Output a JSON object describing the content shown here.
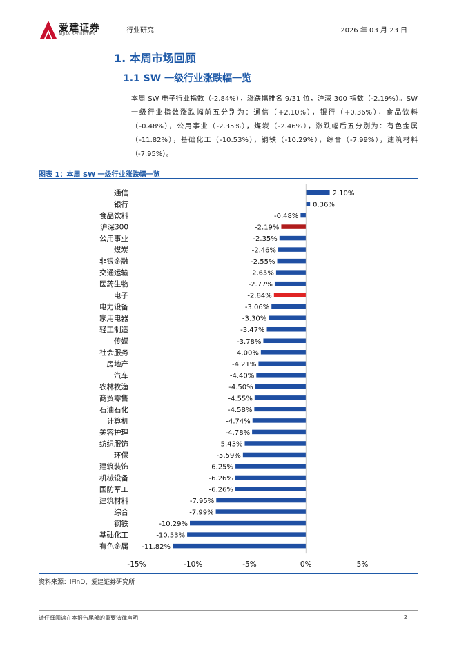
{
  "header": {
    "company_name": "爱建证券",
    "company_name_en": "AIJIAN SECURITIES",
    "section": "行业研究",
    "date": "2026 年 03 月 23 日"
  },
  "headings": {
    "h1": "1.  本周市场回顾",
    "h2": "1.1 SW 一级行业涨跌幅一览"
  },
  "body": {
    "paragraph": "本周 SW 电子行业指数（-2.84%），涨跌幅排名 9/31 位，沪深 300 指数（-2.19%）。SW 一级行业指数涨跌幅前五分别为：通信（+2.10%），银行（+0.36%），食品饮料（-0.48%），公用事业（-2.35%），煤炭（-2.46%），涨跌幅后五分别为：有色金属（-11.82%），基础化工（-10.53%），钢铁（-10.29%），综合（-7.99%），建筑材料（-7.95%）。"
  },
  "figure": {
    "title": "图表 1：本周 SW 一级行业涨跌幅一览",
    "source": "资料来源：iFinD，爱建证券研究所"
  },
  "chart_data": {
    "type": "bar",
    "orientation": "horizontal",
    "categories": [
      "通信",
      "银行",
      "食品饮料",
      "沪深300",
      "公用事业",
      "煤炭",
      "非银金融",
      "交通运输",
      "医药生物",
      "电子",
      "电力设备",
      "家用电器",
      "轻工制造",
      "传媒",
      "社会服务",
      "房地产",
      "汽车",
      "农林牧渔",
      "商贸零售",
      "石油石化",
      "计算机",
      "美容护理",
      "纺织服饰",
      "环保",
      "建筑装饰",
      "机械设备",
      "国防军工",
      "建筑材料",
      "综合",
      "钢铁",
      "基础化工",
      "有色金属"
    ],
    "values": [
      2.1,
      0.36,
      -0.48,
      -2.19,
      -2.35,
      -2.46,
      -2.55,
      -2.65,
      -2.77,
      -2.84,
      -3.06,
      -3.3,
      -3.47,
      -3.78,
      -4.0,
      -4.21,
      -4.4,
      -4.5,
      -4.55,
      -4.58,
      -4.74,
      -4.78,
      -5.43,
      -5.59,
      -6.25,
      -6.26,
      -6.26,
      -7.95,
      -7.99,
      -10.29,
      -10.53,
      -11.82
    ],
    "value_labels": [
      "2.10%",
      "0.36%",
      "-0.48%",
      "-2.19%",
      "-2.35%",
      "-2.46%",
      "-2.55%",
      "-2.65%",
      "-2.77%",
      "-2.84%",
      "-3.06%",
      "-3.30%",
      "-3.47%",
      "-3.78%",
      "-4.00%",
      "-4.21%",
      "-4.40%",
      "-4.50%",
      "-4.55%",
      "-4.58%",
      "-4.74%",
      "-4.78%",
      "-5.43%",
      "-5.59%",
      "-6.25%",
      "-6.26%",
      "-6.26%",
      "-7.95%",
      "-7.99%",
      "-10.29%",
      "-10.53%",
      "-11.82%"
    ],
    "xlim": [
      -15,
      5
    ],
    "xticks": [
      -15,
      -10,
      -5,
      0,
      5
    ],
    "xtick_labels": [
      "-15%",
      "-10%",
      "-5%",
      "0%",
      "5%"
    ],
    "colors": {
      "default": "#1f4fa3",
      "沪深300": "#b01c1c",
      "电子": "#e02424"
    },
    "grid": false,
    "legend": "none"
  },
  "footer": {
    "note": "请仔细阅读在本报告尾部的重要法律声明",
    "page": "2"
  }
}
